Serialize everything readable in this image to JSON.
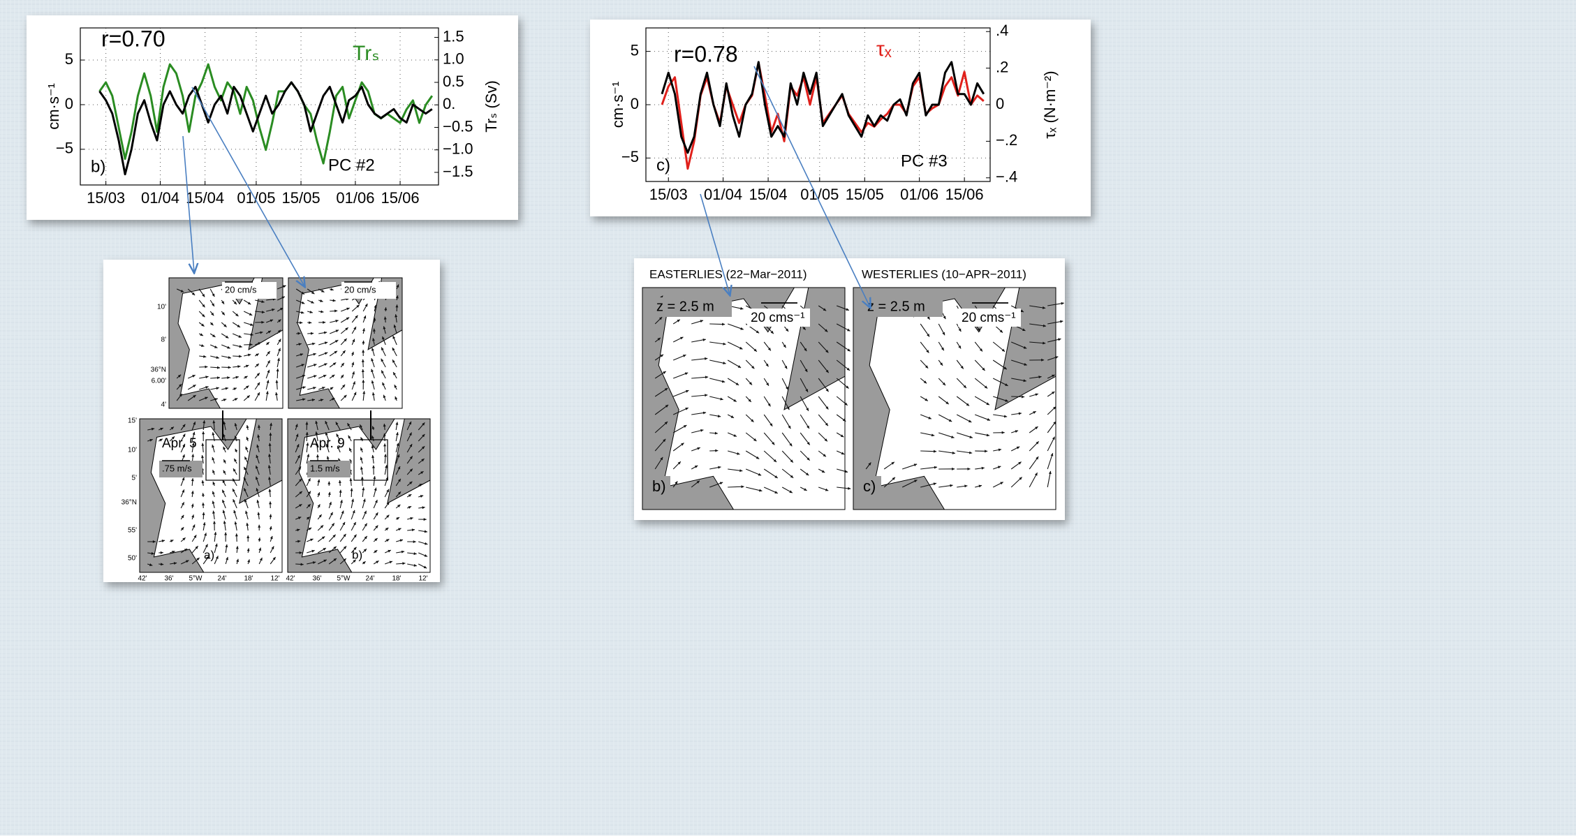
{
  "chart_data": [
    {
      "type": "line",
      "annotation": "r=0.70",
      "panel_label": "b)",
      "label": "PC #2",
      "ylabel": "cm·s⁻¹",
      "y2label": "Trₛ (Sv)",
      "grid": true,
      "x": [
        "13/03",
        "15/03",
        "17/03",
        "19/03",
        "21/03",
        "23/03",
        "25/03",
        "27/03",
        "29/03",
        "31/03",
        "02/04",
        "04/04",
        "06/04",
        "08/04",
        "10/04",
        "12/04",
        "14/04",
        "16/04",
        "18/04",
        "20/04",
        "22/04",
        "24/04",
        "26/04",
        "28/04",
        "30/04",
        "02/05",
        "04/05",
        "06/05",
        "08/05",
        "10/05",
        "12/05",
        "14/05",
        "16/05",
        "18/05",
        "20/05",
        "22/05",
        "24/05",
        "26/05",
        "28/05",
        "30/05",
        "01/06",
        "03/06",
        "05/06",
        "07/06",
        "09/06",
        "11/06",
        "13/06",
        "15/06",
        "17/06",
        "19/06",
        "21/06",
        "23/06",
        "25/06"
      ],
      "xlim": [
        "07/03",
        "27/06"
      ],
      "xticks": [
        "15/03",
        "01/04",
        "15/04",
        "01/05",
        "15/05",
        "01/06",
        "15/06"
      ],
      "ylim": [
        -9,
        8.6
      ],
      "yticks": [
        5,
        0,
        {
          "value": -5,
          "label": "−5"
        }
      ],
      "y2lim": [
        -1.78,
        1.71
      ],
      "y2ticks": [
        {
          "value": 1.5,
          "label": "1.5"
        },
        {
          "value": 1.0,
          "label": "1.0"
        },
        {
          "value": 0.5,
          "label": "0.5"
        },
        {
          "value": 0,
          "label": "0."
        },
        {
          "value": -0.5,
          "label": "−0.5"
        },
        {
          "value": -1.0,
          "label": "−1.0"
        },
        {
          "value": -1.5,
          "label": "−1.5"
        }
      ],
      "series": [
        {
          "color": "#000000",
          "values": [
            1.5,
            0.5,
            -1,
            -4,
            -7.8,
            -5,
            -1,
            0.5,
            -2,
            -4,
            0,
            1.5,
            0,
            -1,
            1,
            2,
            0,
            -2,
            0,
            1,
            -1,
            2,
            1,
            -1,
            -3,
            -1,
            1,
            -1,
            0,
            1.5,
            2.5,
            1.5,
            0,
            -3,
            -1,
            1,
            2,
            0,
            -2,
            0.5,
            1,
            2,
            0,
            -1,
            -1.5,
            -1,
            -0.5,
            -1.5,
            -2,
            0,
            -0.5,
            -1,
            -0.5
          ]
        },
        {
          "name": "Trₛ",
          "color": "#2a8c22",
          "axis": "y2",
          "values": [
            0.3,
            0.5,
            0.2,
            -0.5,
            -1.2,
            -0.6,
            0.2,
            0.7,
            0.2,
            -0.6,
            0.4,
            0.9,
            0.7,
            0.2,
            -0.6,
            0.2,
            0.5,
            0.9,
            0.4,
            0.1,
            0.5,
            0.3,
            -0.2,
            0.4,
            0.1,
            -0.5,
            -1.0,
            -0.4,
            0.3,
            0.3,
            0.5,
            0.3,
            0,
            -0.2,
            -0.8,
            -1.3,
            -0.6,
            0.2,
            0.4,
            -0.3,
            0.1,
            0.5,
            0.3,
            -0.2,
            -0.3,
            -0.2,
            -0.3,
            -0.4,
            -0.1,
            0.1,
            -0.4,
            0,
            0.2
          ]
        }
      ]
    },
    {
      "type": "line",
      "annotation": "r=0.78",
      "panel_label": "c)",
      "label": "PC #3",
      "ylabel": "cm·s⁻¹",
      "y2label": "τₓ (N·m⁻²)",
      "grid": true,
      "x": [
        "13/03",
        "15/03",
        "17/03",
        "19/03",
        "21/03",
        "23/03",
        "25/03",
        "27/03",
        "29/03",
        "31/03",
        "02/04",
        "04/04",
        "06/04",
        "08/04",
        "10/04",
        "12/04",
        "14/04",
        "16/04",
        "18/04",
        "20/04",
        "22/04",
        "24/04",
        "26/04",
        "28/04",
        "30/04",
        "02/05",
        "04/05",
        "06/05",
        "08/05",
        "10/05",
        "12/05",
        "14/05",
        "16/05",
        "18/05",
        "20/05",
        "22/05",
        "24/05",
        "26/05",
        "28/05",
        "30/05",
        "01/06",
        "03/06",
        "05/06",
        "07/06",
        "09/06",
        "11/06",
        "13/06",
        "15/06",
        "17/06",
        "19/06",
        "21/06"
      ],
      "xlim": [
        "08/03",
        "23/06"
      ],
      "xticks": [
        "15/03",
        "01/04",
        "15/04",
        "01/05",
        "15/05",
        "01/06",
        "15/06"
      ],
      "ylim": [
        -7.2,
        7.2
      ],
      "yticks": [
        5,
        0,
        {
          "value": -5,
          "label": "−5"
        }
      ],
      "y2lim": [
        -0.42,
        0.42
      ],
      "y2ticks": [
        {
          "value": 0.4,
          "label": ".4"
        },
        {
          "value": 0.2,
          "label": ".2"
        },
        0,
        {
          "value": -0.2,
          "label": "−.2"
        },
        {
          "value": -0.4,
          "label": "−.4"
        }
      ],
      "series": [
        {
          "color": "#000000",
          "values": [
            1,
            3,
            1,
            -3,
            -4.5,
            -3,
            1,
            3,
            0,
            -2,
            2,
            -1,
            -3,
            0,
            1,
            4,
            0,
            -3,
            -2,
            -3,
            2,
            0,
            3,
            1,
            3,
            -2,
            -1,
            0,
            1,
            -1,
            -2,
            -3,
            -1,
            -2,
            -1,
            -1.5,
            0,
            0.5,
            -1,
            2,
            3,
            -1,
            0,
            0,
            3,
            4,
            1,
            1,
            0,
            2,
            1
          ]
        },
        {
          "name": "τₓ",
          "color": "#e0201b",
          "axis": "y2",
          "values": [
            0,
            0.1,
            0.15,
            -0.1,
            -0.35,
            -0.2,
            0.05,
            0.15,
            0,
            -0.1,
            0.1,
            0,
            -0.1,
            0,
            0.05,
            0.23,
            0.05,
            -0.15,
            -0.05,
            -0.2,
            0.1,
            0.05,
            0.15,
            0,
            0.15,
            -0.1,
            -0.05,
            0,
            0.05,
            -0.05,
            -0.1,
            -0.15,
            -0.1,
            -0.12,
            -0.08,
            -0.05,
            0,
            0,
            -0.05,
            0.1,
            0.15,
            -0.05,
            -0.02,
            0,
            0.1,
            0.15,
            0.05,
            0.18,
            0,
            0.05,
            0.02
          ]
        }
      ]
    }
  ],
  "figures": {
    "left": {
      "panels": [
        {
          "scale": "20 cm/s"
        },
        {
          "scale": "20 cm/s"
        },
        {
          "label": "Apr. 5",
          "scale": ".75 m/s",
          "tag": "a)"
        },
        {
          "label": "Apr. 9",
          "scale": "1.5 m/s",
          "tag": "b)"
        }
      ],
      "lat_top": [
        "10'",
        "8'",
        "36°N",
        "6.00'",
        "4'"
      ],
      "lat_bottom": [
        "15'",
        "10'",
        "5'",
        "36°N",
        "55'",
        "50'"
      ],
      "lon": [
        "42'",
        "36'",
        "5°W",
        "24'",
        "18'",
        "12'"
      ]
    },
    "right": {
      "panels": [
        {
          "title": "EASTERLIES (22−Mar−2011)",
          "depth": "z = 2.5 m",
          "scale": "20 cms⁻¹",
          "tag": "b)"
        },
        {
          "title": "WESTERLIES (10−APR−2011)",
          "depth": "z = 2.5 m",
          "scale": "20 cms⁻¹",
          "tag": "c)"
        }
      ]
    }
  }
}
